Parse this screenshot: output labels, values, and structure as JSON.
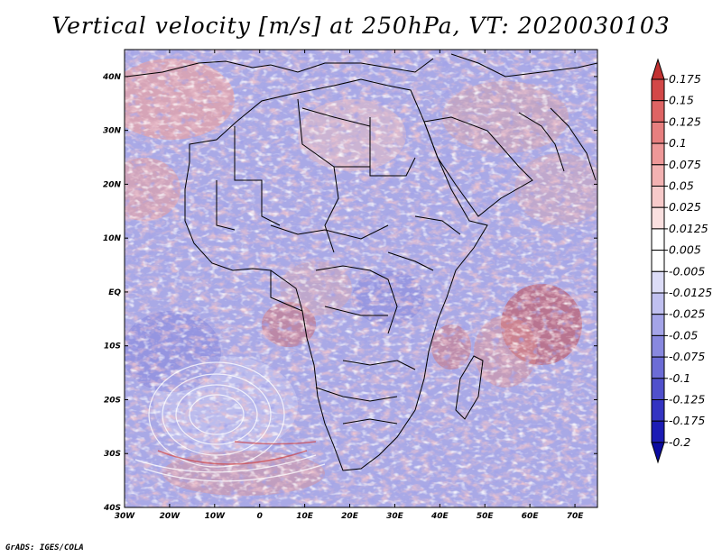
{
  "title": "Vertical velocity [m/s] at 250hPa, VT: 2020030103",
  "footer": "GrADS: IGES/COLA",
  "map": {
    "lon_ticks": [
      "30W",
      "20W",
      "10W",
      "0",
      "10E",
      "20E",
      "30E",
      "40E",
      "50E",
      "60E",
      "70E"
    ],
    "lat_ticks": [
      "40N",
      "30N",
      "20N",
      "10N",
      "EQ",
      "10S",
      "20S",
      "30S",
      "40S"
    ],
    "lon_range": [
      -30,
      75
    ],
    "lat_range": [
      -40,
      45
    ]
  },
  "colorbar": {
    "levels": [
      "0.175",
      "0.15",
      "0.125",
      "0.1",
      "0.075",
      "0.05",
      "0.025",
      "0.0125",
      "0.005",
      "-0.005",
      "-0.0125",
      "-0.025",
      "-0.05",
      "-0.075",
      "-0.1",
      "-0.125",
      "-0.175",
      "-0.2"
    ],
    "colors": [
      "#c23131",
      "#d24848",
      "#de6464",
      "#e77f7f",
      "#ee9898",
      "#f3b2b2",
      "#f7caca",
      "#fae0e0",
      "#ffffff",
      "#ffffff",
      "#dcdcf7",
      "#c0c0f0",
      "#a4a4e8",
      "#8888df",
      "#6c6cd6",
      "#5050cc",
      "#3434c2",
      "#1c1cb5",
      "#0b0ba0"
    ]
  },
  "palette": {
    "red": "#d85a5a",
    "blue": "#7070d8",
    "white": "#ffffff"
  }
}
